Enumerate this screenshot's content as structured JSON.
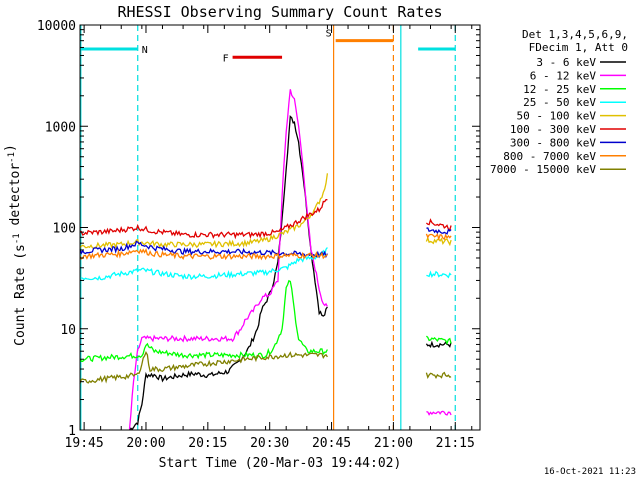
{
  "chart_data": {
    "type": "line",
    "title": "RHESSI Observing Summary Count Rates",
    "xlabel": "Start Time (20-Mar-03 19:44:02)",
    "ylabel": "Count Rate (s⁻¹ detector⁻¹)",
    "ylabel_parts": [
      "Count Rate (s",
      "-1",
      " detector",
      "-1",
      ")"
    ],
    "y_scale": "log",
    "ylim": [
      1,
      10000
    ],
    "xlim_minutes": [
      0,
      97
    ],
    "x_tick_labels": [
      {
        "label": "19:45",
        "t": 1
      },
      {
        "label": "20:00",
        "t": 16
      },
      {
        "label": "20:15",
        "t": 31
      },
      {
        "label": "20:30",
        "t": 46
      },
      {
        "label": "20:45",
        "t": 61
      },
      {
        "label": "21:00",
        "t": 76
      },
      {
        "label": "21:15",
        "t": 91
      }
    ],
    "y_tick_labels": [
      {
        "label": "10000",
        "v": 10000
      },
      {
        "label": "1000",
        "v": 1000
      },
      {
        "label": "100",
        "v": 100
      },
      {
        "label": "10",
        "v": 10
      },
      {
        "label": "1",
        "v": 1
      }
    ],
    "legend_header": [
      "Det 1,3,4,5,6,9,",
      "FDecim 1, Att 0"
    ],
    "legend_placement": "right",
    "timestamp": "16-Oct-2021 11:23",
    "series": [
      {
        "name": "3 - 6 keV",
        "color": "#000000",
        "points": [
          [
            12,
            1
          ],
          [
            14,
            1.2
          ],
          [
            15,
            1.8
          ],
          [
            16,
            3.5
          ],
          [
            18,
            3.5
          ],
          [
            20,
            3.2
          ],
          [
            25,
            3.5
          ],
          [
            28,
            3.6
          ],
          [
            30,
            3.5
          ],
          [
            32,
            3.5
          ],
          [
            36,
            3.8
          ],
          [
            38,
            4.5
          ],
          [
            39,
            5
          ],
          [
            41,
            6.5
          ],
          [
            43,
            10
          ],
          [
            44,
            15
          ],
          [
            46,
            22
          ],
          [
            47,
            30
          ],
          [
            48,
            45
          ],
          [
            49,
            120
          ],
          [
            50,
            400
          ],
          [
            51,
            1200
          ],
          [
            52,
            1100
          ],
          [
            53,
            700
          ],
          [
            54,
            350
          ],
          [
            55,
            150
          ],
          [
            56,
            60
          ],
          [
            57,
            30
          ],
          [
            58,
            15
          ],
          [
            59,
            13
          ],
          [
            60,
            16
          ]
        ],
        "points_after": [
          [
            84,
            7
          ],
          [
            90,
            7
          ]
        ]
      },
      {
        "name": "6 - 12 keV",
        "color": "#ff00ff",
        "points": [
          [
            12,
            1
          ],
          [
            13,
            3
          ],
          [
            14,
            6
          ],
          [
            15,
            8
          ],
          [
            20,
            8
          ],
          [
            30,
            8
          ],
          [
            37,
            8
          ],
          [
            38,
            9
          ],
          [
            39,
            10
          ],
          [
            40,
            12
          ],
          [
            42,
            15
          ],
          [
            44,
            20
          ],
          [
            46,
            22
          ],
          [
            48,
            30
          ],
          [
            49,
            200
          ],
          [
            50,
            900
          ],
          [
            51,
            2300
          ],
          [
            52,
            1800
          ],
          [
            53,
            1000
          ],
          [
            54,
            450
          ],
          [
            55,
            150
          ],
          [
            56,
            60
          ],
          [
            57,
            40
          ],
          [
            58,
            25
          ],
          [
            59,
            18
          ],
          [
            60,
            16
          ]
        ],
        "points_after": [
          [
            84,
            1.5
          ],
          [
            90,
            1.5
          ]
        ]
      },
      {
        "name": "12 - 25 keV",
        "color": "#00ff00",
        "points": [
          [
            0,
            5
          ],
          [
            15,
            5.5
          ],
          [
            16,
            7
          ],
          [
            18,
            6
          ],
          [
            25,
            5.5
          ],
          [
            35,
            5.5
          ],
          [
            45,
            5.5
          ],
          [
            47,
            6.5
          ],
          [
            49,
            10
          ],
          [
            50,
            25
          ],
          [
            51,
            30
          ],
          [
            52,
            15
          ],
          [
            53,
            8
          ],
          [
            55,
            6
          ],
          [
            60,
            6
          ]
        ],
        "points_after": [
          [
            84,
            8
          ],
          [
            90,
            7.5
          ]
        ]
      },
      {
        "name": "25 - 50 keV",
        "color": "#00ffff",
        "points": [
          [
            0,
            32
          ],
          [
            5,
            32
          ],
          [
            10,
            35
          ],
          [
            15,
            38
          ],
          [
            20,
            35
          ],
          [
            25,
            33
          ],
          [
            30,
            33
          ],
          [
            35,
            34
          ],
          [
            40,
            35
          ],
          [
            45,
            36
          ],
          [
            50,
            40
          ],
          [
            53,
            48
          ],
          [
            56,
            50
          ],
          [
            58,
            52
          ],
          [
            60,
            60
          ]
        ],
        "points_after": [
          [
            84,
            35
          ],
          [
            90,
            34
          ]
        ]
      },
      {
        "name": "50 - 100 keV",
        "color": "#e0c000",
        "points": [
          [
            0,
            65
          ],
          [
            10,
            68
          ],
          [
            14,
            72
          ],
          [
            20,
            68
          ],
          [
            30,
            68
          ],
          [
            40,
            70
          ],
          [
            45,
            75
          ],
          [
            50,
            90
          ],
          [
            54,
            110
          ],
          [
            57,
            150
          ],
          [
            59,
            220
          ],
          [
            60,
            330
          ]
        ],
        "points_after": [
          [
            84,
            75
          ],
          [
            90,
            72
          ]
        ]
      },
      {
        "name": "100 - 300 keV",
        "color": "#e00000",
        "points": [
          [
            0,
            88
          ],
          [
            8,
            92
          ],
          [
            14,
            100
          ],
          [
            18,
            92
          ],
          [
            25,
            85
          ],
          [
            35,
            85
          ],
          [
            42,
            85
          ],
          [
            48,
            90
          ],
          [
            52,
            110
          ],
          [
            55,
            130
          ],
          [
            58,
            150
          ],
          [
            60,
            200
          ]
        ],
        "points_after": [
          [
            84,
            115
          ],
          [
            90,
            100
          ]
        ]
      },
      {
        "name": "300 - 800 keV",
        "color": "#0000cc",
        "points": [
          [
            0,
            58
          ],
          [
            10,
            62
          ],
          [
            14,
            70
          ],
          [
            18,
            63
          ],
          [
            25,
            58
          ],
          [
            35,
            58
          ],
          [
            42,
            57
          ],
          [
            48,
            56
          ],
          [
            52,
            55
          ],
          [
            56,
            54
          ],
          [
            60,
            54
          ]
        ],
        "points_after": [
          [
            84,
            95
          ],
          [
            90,
            90
          ]
        ]
      },
      {
        "name": "800 - 7000 keV",
        "color": "#ff7f00",
        "points": [
          [
            0,
            52
          ],
          [
            10,
            55
          ],
          [
            14,
            60
          ],
          [
            18,
            55
          ],
          [
            25,
            52
          ],
          [
            35,
            52
          ],
          [
            45,
            52
          ],
          [
            50,
            53
          ],
          [
            55,
            53
          ],
          [
            60,
            53
          ]
        ],
        "points_after": [
          [
            84,
            82
          ],
          [
            90,
            80
          ]
        ]
      },
      {
        "name": "7000 - 15000 keV",
        "color": "#808000",
        "points": [
          [
            0,
            3
          ],
          [
            14,
            3.5
          ],
          [
            16,
            6
          ],
          [
            17,
            4
          ],
          [
            20,
            4
          ],
          [
            30,
            4.5
          ],
          [
            40,
            5
          ],
          [
            50,
            5.5
          ],
          [
            60,
            5.5
          ]
        ],
        "points_after": [
          [
            84,
            3.5
          ],
          [
            90,
            3.5
          ]
        ]
      }
    ],
    "flags": [
      {
        "label": "N",
        "color": "#00e0e0",
        "y": 5800,
        "segments": [
          [
            0,
            14
          ],
          [
            82,
            91
          ]
        ]
      },
      {
        "label": "F",
        "color": "#e00000",
        "y": 4800,
        "segments": [
          [
            37,
            49
          ]
        ]
      },
      {
        "label": "S",
        "color": "#ff7f00",
        "y": 7000,
        "segments": [
          [
            62,
            76
          ]
        ]
      }
    ],
    "vlines": [
      {
        "t": 0.2,
        "color": "#00e0e0",
        "style": "solid"
      },
      {
        "t": 14,
        "color": "#00e0e0",
        "style": "dashed"
      },
      {
        "t": 61.5,
        "color": "#ff7f00",
        "style": "solid"
      },
      {
        "t": 76,
        "color": "#ff7f00",
        "style": "dashed"
      },
      {
        "t": 77.8,
        "color": "#00e0e0",
        "style": "solid"
      },
      {
        "t": 91,
        "color": "#00e0e0",
        "style": "dashed"
      }
    ]
  }
}
